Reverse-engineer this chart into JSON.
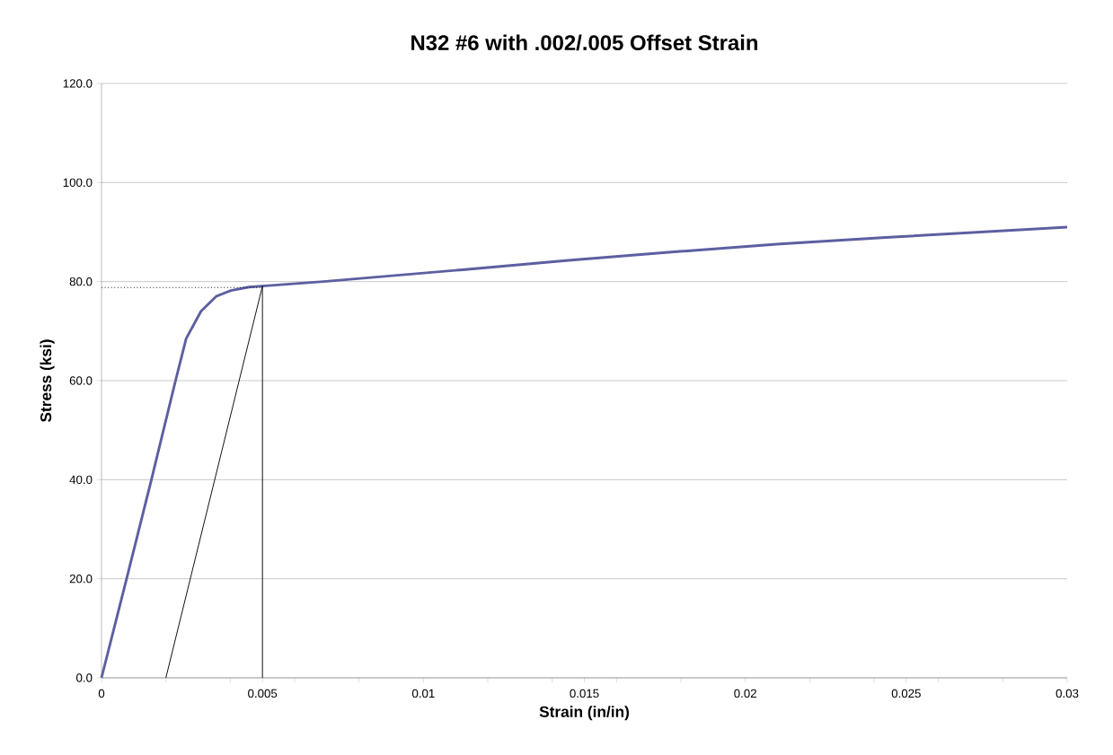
{
  "chart_data": {
    "type": "line",
    "title": "N32 #6 with .002/.005 Offset Strain",
    "xlabel": "Strain (in/in)",
    "ylabel": "Stress (ksi)",
    "series": [
      {
        "color": "#5c5fa0",
        "x": [
          0,
          0.00078,
          0.00155,
          0.0023,
          0.00263,
          0.00309,
          0.00356,
          0.00402,
          0.00458,
          0.005,
          0.0069,
          0.01122,
          0.01451,
          0.01779,
          0.02107,
          0.02436,
          0.03
        ],
        "values": [
          0,
          20,
          40,
          60,
          68.5,
          74.0,
          77.0,
          78.2,
          78.9,
          79.1,
          80.0,
          82.4,
          84.3,
          86.0,
          87.6,
          88.9,
          91.0
        ]
      },
      {
        "color": "#000000",
        "x": [
          0.002,
          0.005
        ],
        "values": [
          0,
          79.1
        ]
      },
      {
        "color": "#000000",
        "x": [
          0.005,
          0.005
        ],
        "values": [
          0,
          79.1
        ]
      },
      {
        "color": "#000000",
        "line_style": "dotted",
        "x": [
          0,
          0.005
        ],
        "values": [
          78.8,
          78.8
        ]
      }
    ],
    "xlim": [
      0,
      0.03
    ],
    "ylim": [
      0,
      120
    ],
    "xticks": [
      0,
      {
        "value": 0.002,
        "label": null
      },
      {
        "value": 0.004,
        "label": null
      },
      0.005,
      {
        "value": 0.006,
        "label": null
      },
      {
        "value": 0.008,
        "label": null
      },
      0.01,
      {
        "value": 0.012,
        "label": null
      },
      {
        "value": 0.014,
        "label": null
      },
      0.015,
      {
        "value": 0.016,
        "label": null
      },
      {
        "value": 0.018,
        "label": null
      },
      0.02,
      {
        "value": 0.022,
        "label": null
      },
      {
        "value": 0.024,
        "label": null
      },
      0.025,
      {
        "value": 0.026,
        "label": null
      },
      {
        "value": 0.028,
        "label": null
      },
      0.03
    ],
    "yticks": [
      {
        "value": 0,
        "label": "0.0"
      },
      {
        "value": 20,
        "label": "20.0"
      },
      {
        "value": 40,
        "label": "40.0"
      },
      {
        "value": 60,
        "label": "60.0"
      },
      {
        "value": 80,
        "label": "80.0"
      },
      {
        "value": 100,
        "label": "100.0"
      },
      {
        "value": 120,
        "label": "120.0"
      }
    ],
    "grid": "y",
    "marker": "none",
    "line_style": "solid"
  }
}
